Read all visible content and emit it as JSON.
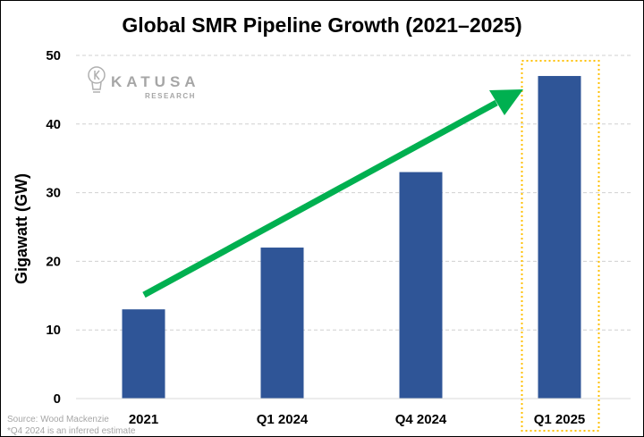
{
  "chart_data": {
    "type": "bar",
    "title": "Global SMR Pipeline Growth (2021–2025)",
    "xlabel": "",
    "ylabel": "Gigawatt (GW)",
    "categories": [
      "2021",
      "Q1 2024",
      "Q4 2024",
      "Q1 2025"
    ],
    "values": [
      13,
      22,
      33,
      47
    ],
    "ylim": [
      0,
      50
    ],
    "yticks": [
      0,
      10,
      20,
      30,
      40,
      50
    ],
    "grid": true,
    "legend": "none",
    "highlighted_category": "Q1 2025",
    "annotation": "upward trend arrow from 2021 to Q1 2025",
    "bar_color": "#2F5597",
    "arrow_color": "#00B050",
    "highlight_color": "#FFC000"
  },
  "logo": {
    "name": "KATUSA",
    "sub": "RESEARCH"
  },
  "footnotes": {
    "source": "Source: Wood Mackenzie",
    "note": "*Q4 2024 is an inferred estimate"
  }
}
